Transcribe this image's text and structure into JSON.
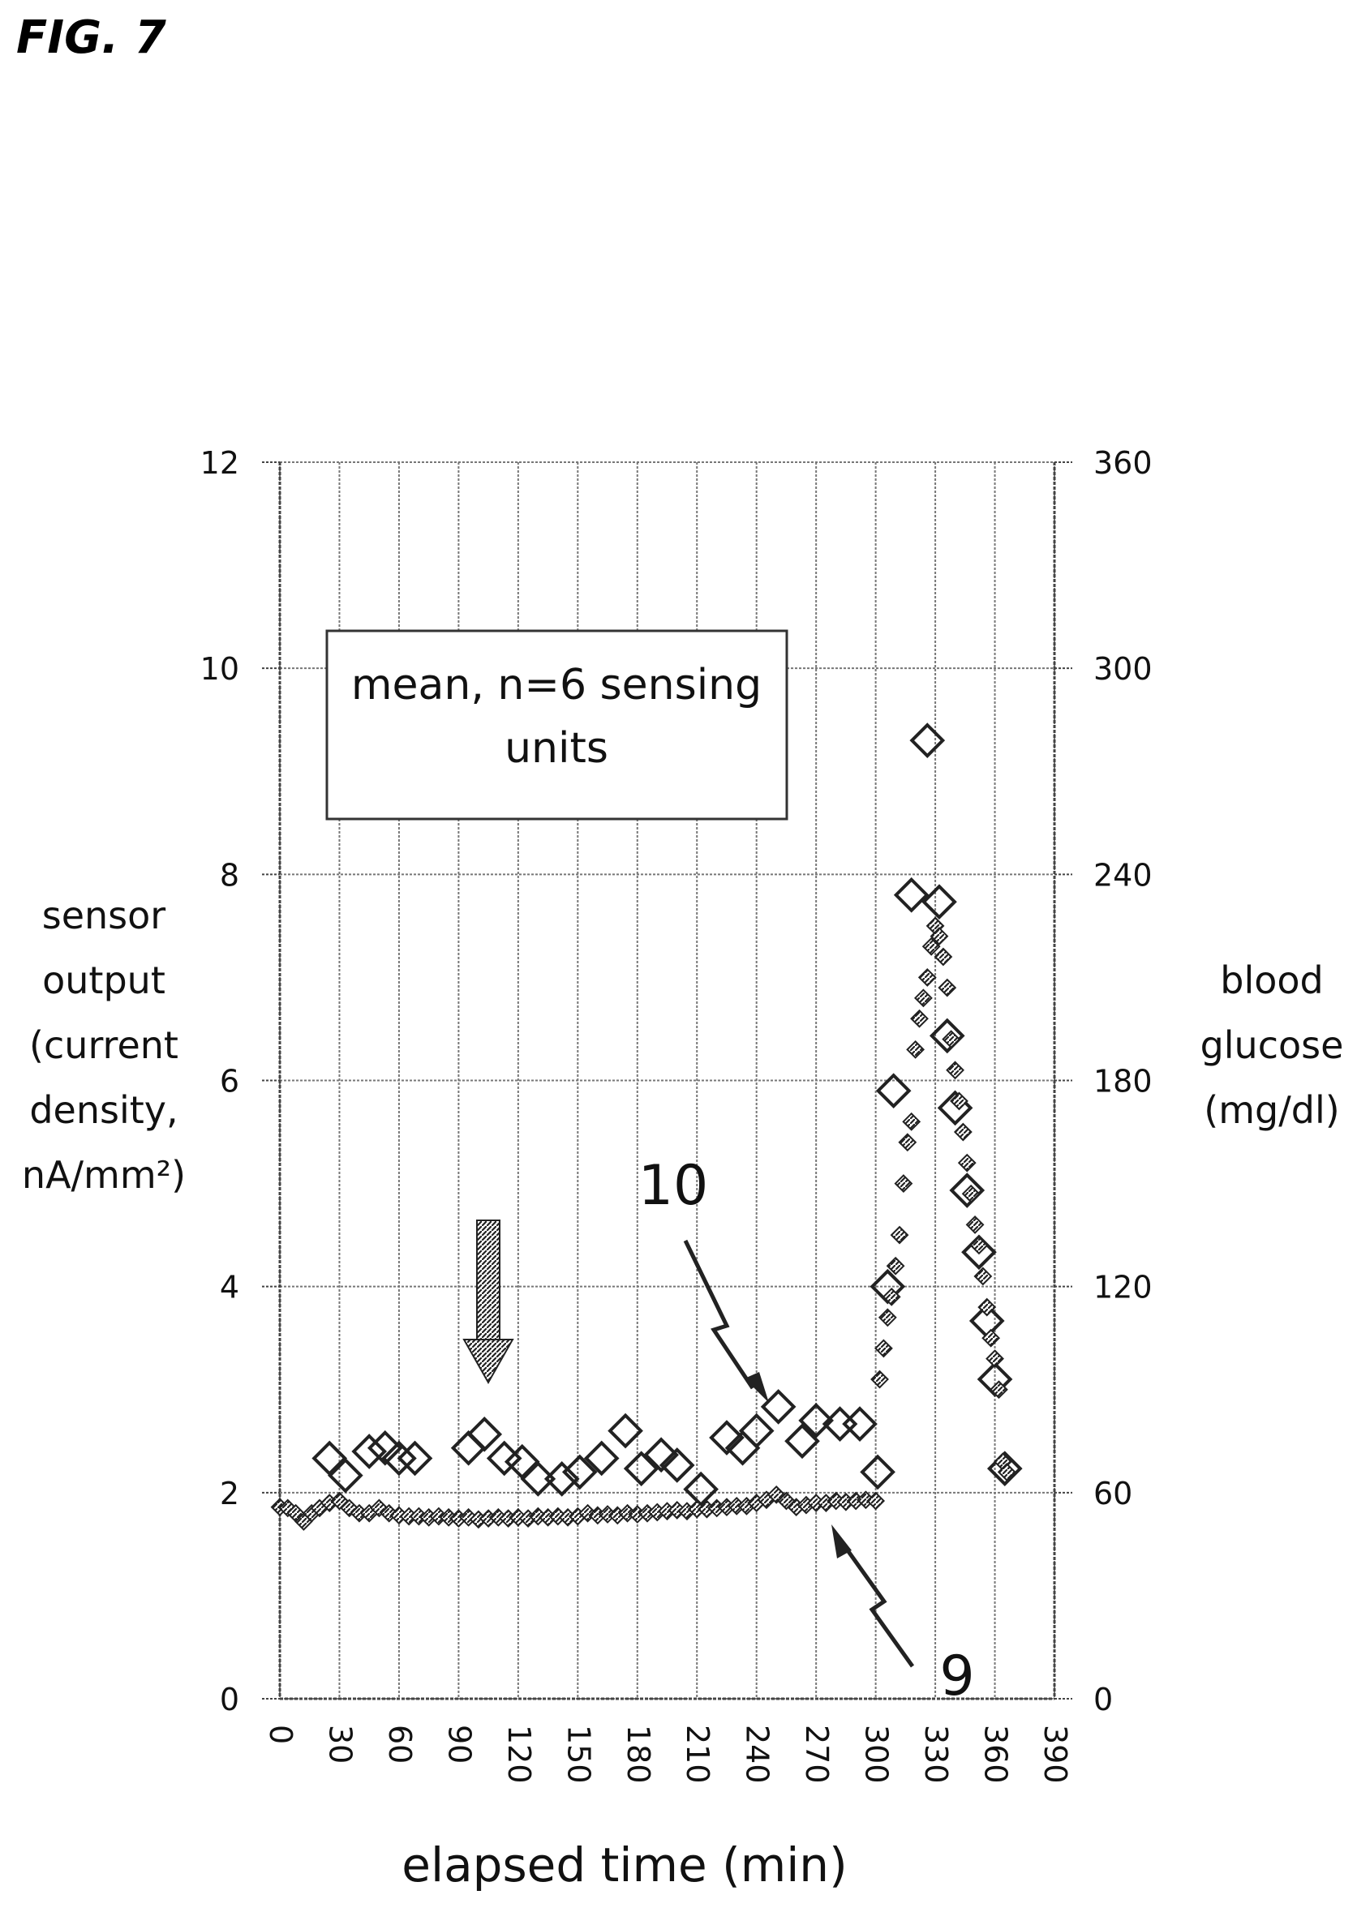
{
  "figure_label": "FIG. 7",
  "chart_data": {
    "type": "scatter",
    "xlabel": "elapsed time (min)",
    "ylabel_left": [
      "sensor",
      "output",
      "(current",
      "density,",
      "nA/mm²)"
    ],
    "ylabel_right": [
      "blood",
      "glucose",
      "(mg/dl)"
    ],
    "xlim": [
      0,
      390
    ],
    "ylim_left": [
      0,
      12
    ],
    "ylim_right": [
      0,
      360
    ],
    "x_ticks": [
      "0",
      "30",
      "60",
      "90",
      "120",
      "150",
      "180",
      "210",
      "240",
      "270",
      "300",
      "330",
      "360",
      "390"
    ],
    "y_ticks_left": [
      "0",
      "2",
      "4",
      "6",
      "8",
      "10",
      "12"
    ],
    "y_ticks_right": [
      "0",
      "60",
      "120",
      "180",
      "240",
      "300",
      "360"
    ],
    "grid": true,
    "annotation_box": [
      "mean, n=6 sensing",
      "units"
    ],
    "labels": {
      "ten": "10",
      "nine": "9"
    },
    "series": [
      {
        "marker": "open-diamond",
        "axis": "right",
        "points": [
          [
            25,
            70
          ],
          [
            33,
            65
          ],
          [
            45,
            72
          ],
          [
            53,
            73
          ],
          [
            60,
            70
          ],
          [
            68,
            70
          ],
          [
            95,
            73
          ],
          [
            103,
            77
          ],
          [
            113,
            70
          ],
          [
            122,
            69
          ],
          [
            130,
            64
          ],
          [
            142,
            64
          ],
          [
            151,
            66
          ],
          [
            162,
            70
          ],
          [
            174,
            78
          ],
          [
            182,
            67
          ],
          [
            192,
            71
          ],
          [
            200,
            68
          ],
          [
            212,
            61
          ],
          [
            225,
            76
          ],
          [
            233,
            73
          ],
          [
            240,
            78
          ],
          [
            251,
            85
          ],
          [
            263,
            75
          ],
          [
            270,
            81
          ],
          [
            282,
            80
          ],
          [
            292,
            80
          ],
          [
            301,
            66
          ],
          [
            306,
            120
          ],
          [
            309,
            177
          ],
          [
            318,
            234
          ],
          [
            326,
            279
          ],
          [
            332,
            232
          ],
          [
            336,
            193
          ],
          [
            340,
            172
          ],
          [
            346,
            148
          ],
          [
            352,
            130
          ],
          [
            356,
            110
          ],
          [
            360,
            93
          ],
          [
            365,
            67
          ]
        ]
      },
      {
        "marker": "filled-diamond",
        "axis": "left",
        "points": [
          [
            0,
            1.86
          ],
          [
            4,
            1.85
          ],
          [
            8,
            1.8
          ],
          [
            12,
            1.72
          ],
          [
            16,
            1.8
          ],
          [
            20,
            1.85
          ],
          [
            25,
            1.9
          ],
          [
            30,
            1.92
          ],
          [
            35,
            1.85
          ],
          [
            40,
            1.8
          ],
          [
            45,
            1.8
          ],
          [
            50,
            1.85
          ],
          [
            55,
            1.8
          ],
          [
            60,
            1.78
          ],
          [
            65,
            1.77
          ],
          [
            70,
            1.77
          ],
          [
            75,
            1.76
          ],
          [
            80,
            1.77
          ],
          [
            85,
            1.76
          ],
          [
            90,
            1.75
          ],
          [
            95,
            1.76
          ],
          [
            100,
            1.74
          ],
          [
            105,
            1.75
          ],
          [
            110,
            1.76
          ],
          [
            115,
            1.75
          ],
          [
            120,
            1.76
          ],
          [
            125,
            1.75
          ],
          [
            130,
            1.77
          ],
          [
            135,
            1.76
          ],
          [
            140,
            1.77
          ],
          [
            145,
            1.76
          ],
          [
            150,
            1.77
          ],
          [
            155,
            1.8
          ],
          [
            160,
            1.78
          ],
          [
            165,
            1.79
          ],
          [
            170,
            1.78
          ],
          [
            175,
            1.8
          ],
          [
            180,
            1.79
          ],
          [
            185,
            1.8
          ],
          [
            190,
            1.81
          ],
          [
            195,
            1.82
          ],
          [
            200,
            1.83
          ],
          [
            205,
            1.82
          ],
          [
            210,
            1.84
          ],
          [
            215,
            1.84
          ],
          [
            220,
            1.85
          ],
          [
            225,
            1.86
          ],
          [
            230,
            1.87
          ],
          [
            235,
            1.87
          ],
          [
            240,
            1.9
          ],
          [
            245,
            1.93
          ],
          [
            250,
            1.98
          ],
          [
            255,
            1.92
          ],
          [
            260,
            1.86
          ],
          [
            265,
            1.88
          ],
          [
            270,
            1.9
          ],
          [
            275,
            1.9
          ],
          [
            280,
            1.92
          ],
          [
            285,
            1.91
          ],
          [
            290,
            1.92
          ],
          [
            295,
            1.93
          ],
          [
            300,
            1.92
          ],
          [
            302,
            3.1
          ],
          [
            304,
            3.4
          ],
          [
            306,
            3.7
          ],
          [
            308,
            3.9
          ],
          [
            310,
            4.2
          ],
          [
            312,
            4.5
          ],
          [
            314,
            5.0
          ],
          [
            316,
            5.4
          ],
          [
            318,
            5.6
          ],
          [
            320,
            6.3
          ],
          [
            322,
            6.6
          ],
          [
            324,
            6.8
          ],
          [
            326,
            7.0
          ],
          [
            328,
            7.3
          ],
          [
            330,
            7.5
          ],
          [
            332,
            7.4
          ],
          [
            334,
            7.2
          ],
          [
            336,
            6.9
          ],
          [
            338,
            6.4
          ],
          [
            340,
            6.1
          ],
          [
            342,
            5.8
          ],
          [
            344,
            5.5
          ],
          [
            346,
            5.2
          ],
          [
            348,
            4.9
          ],
          [
            350,
            4.6
          ],
          [
            352,
            4.4
          ],
          [
            354,
            4.1
          ],
          [
            356,
            3.8
          ],
          [
            358,
            3.5
          ],
          [
            360,
            3.3
          ],
          [
            362,
            3.0
          ],
          [
            364,
            2.3
          ],
          [
            366,
            2.2
          ]
        ]
      }
    ]
  }
}
